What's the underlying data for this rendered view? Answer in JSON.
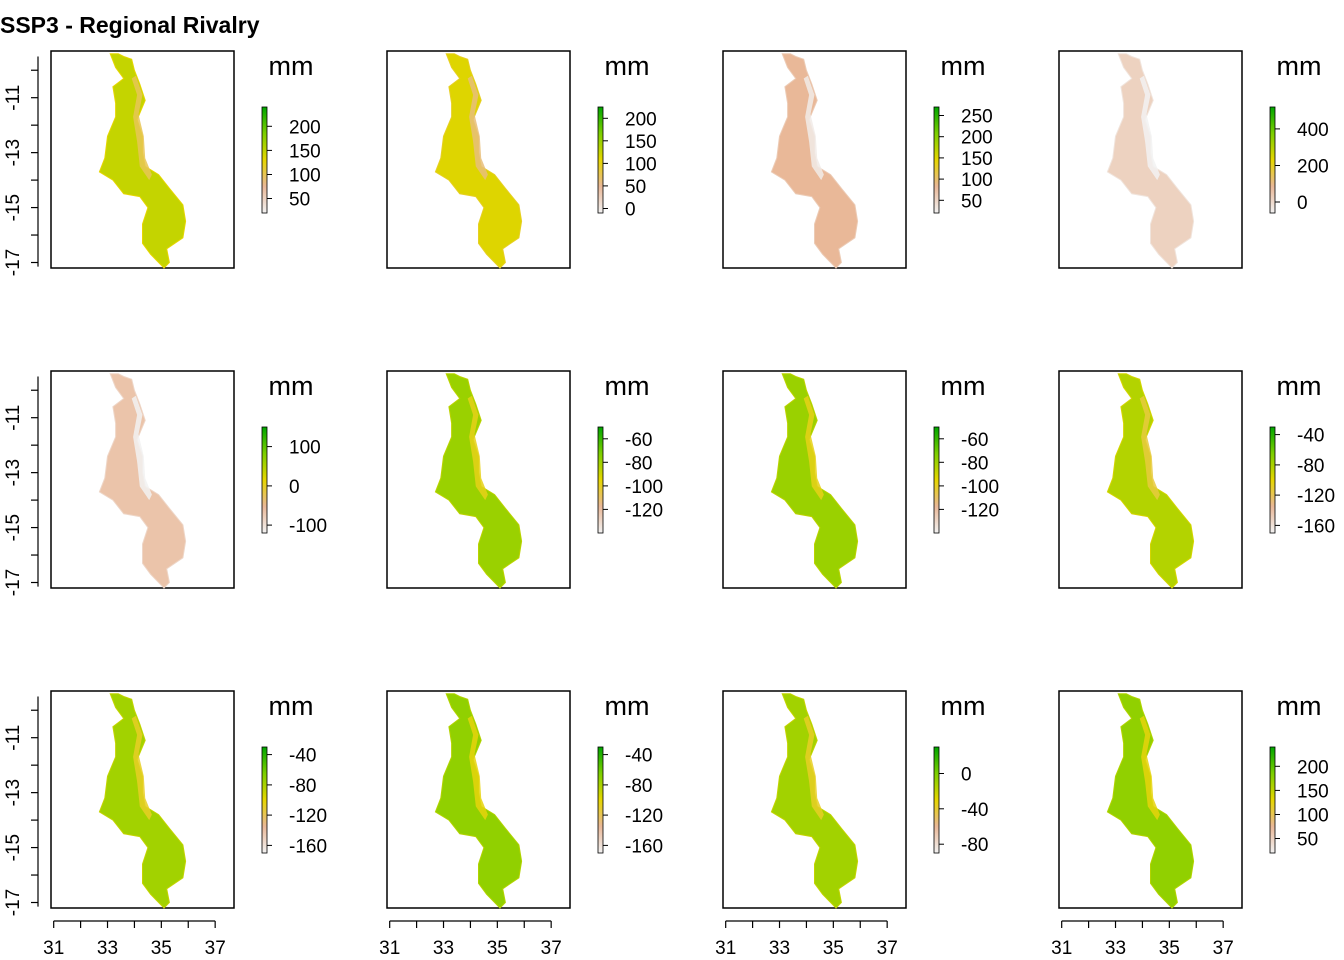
{
  "title": "SSP3 - Regional Rivalry",
  "chart_data": {
    "type": "heatmap",
    "title": "SSP3 - Regional Rivalry",
    "x_ticks": [
      31,
      33,
      35,
      37
    ],
    "y_ticks": [
      -11,
      -13,
      -15,
      -17
    ],
    "xlim": [
      30.9,
      37.7
    ],
    "ylim": [
      -17.2,
      -9.3
    ],
    "legend_unit": "mm",
    "colors": {
      "low": "#f2f2f2",
      "mid_low": "#e9b898",
      "mid": "#e6d600",
      "mid_high": "#7ccf00",
      "high": "#00a600"
    },
    "panels": [
      {
        "legend_ticks": [
          200,
          150,
          100,
          50
        ],
        "range": [
          20,
          240
        ],
        "color_level": 0.58
      },
      {
        "legend_ticks": [
          200,
          150,
          100,
          50,
          0
        ],
        "range": [
          -10,
          225
        ],
        "color_level": 0.52
      },
      {
        "legend_ticks": [
          250,
          200,
          150,
          100,
          50
        ],
        "range": [
          20,
          270
        ],
        "color_level": 0.25
      },
      {
        "legend_ticks": [
          400,
          200,
          0
        ],
        "range": [
          -60,
          520
        ],
        "color_level": 0.14
      },
      {
        "legend_ticks": [
          100,
          0,
          -100
        ],
        "range": [
          -120,
          150
        ],
        "color_level": 0.2
      },
      {
        "legend_ticks": [
          -60,
          -80,
          -100,
          -120
        ],
        "range": [
          -140,
          -50
        ],
        "color_level": 0.68
      },
      {
        "legend_ticks": [
          -60,
          -80,
          -100,
          -120
        ],
        "range": [
          -140,
          -50
        ],
        "color_level": 0.68
      },
      {
        "legend_ticks": [
          -40,
          -80,
          -120,
          -160
        ],
        "range": [
          -170,
          -30
        ],
        "color_level": 0.62
      },
      {
        "legend_ticks": [
          -40,
          -80,
          -120,
          -160
        ],
        "range": [
          -170,
          -30
        ],
        "color_level": 0.66
      },
      {
        "legend_ticks": [
          -40,
          -80,
          -120,
          -160
        ],
        "range": [
          -170,
          -30
        ],
        "color_level": 0.7
      },
      {
        "legend_ticks": [
          0,
          -40,
          -80
        ],
        "range": [
          -90,
          30
        ],
        "color_level": 0.66
      },
      {
        "legend_ticks": [
          200,
          150,
          100,
          50
        ],
        "range": [
          20,
          240
        ],
        "color_level": 0.7
      }
    ]
  }
}
